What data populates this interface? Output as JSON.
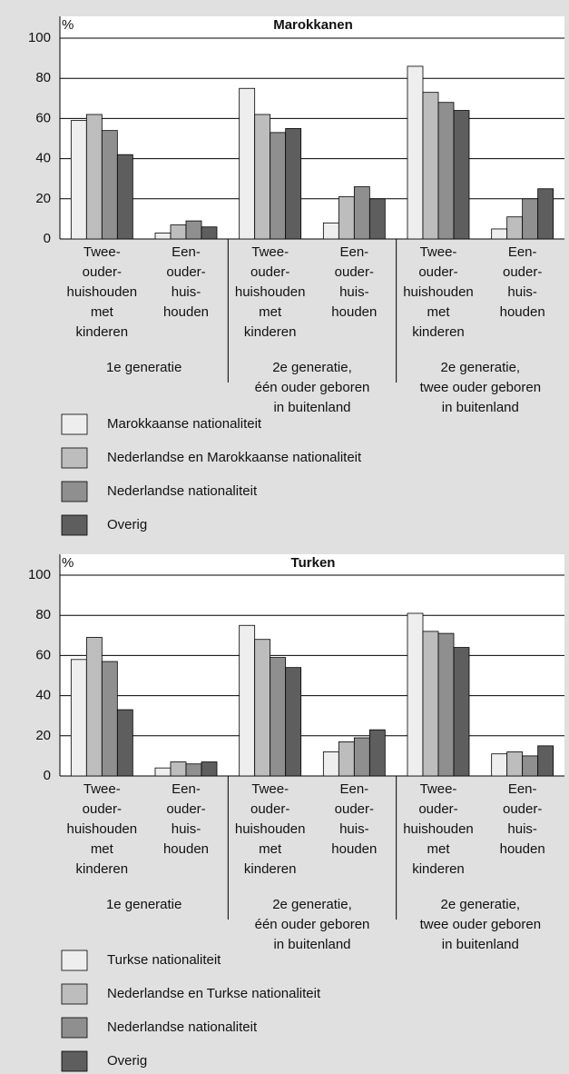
{
  "chart_data": [
    {
      "type": "bar",
      "title": "Marokkanen",
      "ylabel": "%",
      "categories": [
        [
          "Twee-",
          "ouder-",
          "huishouden",
          "met",
          "kinderen"
        ],
        [
          "Een-",
          "ouder-",
          "huis-",
          "houden"
        ],
        [
          "Twee-",
          "ouder-",
          "huishouden",
          "met",
          "kinderen"
        ],
        [
          "Een-",
          "ouder-",
          "huis-",
          "houden"
        ],
        [
          "Twee-",
          "ouder-",
          "huishouden",
          "met",
          "kinderen"
        ],
        [
          "Een-",
          "ouder-",
          "huis-",
          "houden"
        ]
      ],
      "groups": [
        [
          "1e generatie"
        ],
        [
          "2e generatie,",
          "één ouder geboren",
          "in buitenland"
        ],
        [
          "2e generatie,",
          "twee ouder geboren",
          "in buitenland"
        ]
      ],
      "series": [
        {
          "name": "Marokkaanse nationaliteit",
          "color": "#eeeeee",
          "values": [
            59,
            3,
            75,
            8,
            86,
            5
          ]
        },
        {
          "name": "Nederlandse en Marokkaanse nationaliteit",
          "color": "#bdbdbd",
          "values": [
            62,
            7,
            62,
            21,
            73,
            11
          ]
        },
        {
          "name": "Nederlandse nationaliteit",
          "color": "#8f8f8f",
          "values": [
            54,
            9,
            53,
            26,
            68,
            20
          ]
        },
        {
          "name": "Overig",
          "color": "#5e5e5e",
          "values": [
            42,
            6,
            55,
            20,
            64,
            25
          ]
        }
      ],
      "ylim": [
        0,
        100
      ],
      "yticks": [
        0,
        20,
        40,
        60,
        80,
        100
      ],
      "grid": true
    },
    {
      "type": "bar",
      "title": "Turken",
      "ylabel": "%",
      "categories": [
        [
          "Twee-",
          "ouder-",
          "huishouden",
          "met",
          "kinderen"
        ],
        [
          "Een-",
          "ouder-",
          "huis-",
          "houden"
        ],
        [
          "Twee-",
          "ouder-",
          "huishouden",
          "met",
          "kinderen"
        ],
        [
          "Een-",
          "ouder-",
          "huis-",
          "houden"
        ],
        [
          "Twee-",
          "ouder-",
          "huishouden",
          "met",
          "kinderen"
        ],
        [
          "Een-",
          "ouder-",
          "huis-",
          "houden"
        ]
      ],
      "groups": [
        [
          "1e generatie"
        ],
        [
          "2e generatie,",
          "één ouder geboren",
          "in buitenland"
        ],
        [
          "2e generatie,",
          "twee ouder geboren",
          "in buitenland"
        ]
      ],
      "series": [
        {
          "name": "Turkse nationaliteit",
          "color": "#eeeeee",
          "values": [
            58,
            4,
            75,
            12,
            81,
            11
          ]
        },
        {
          "name": "Nederlandse en Turkse nationaliteit",
          "color": "#bdbdbd",
          "values": [
            69,
            7,
            68,
            17,
            72,
            12
          ]
        },
        {
          "name": "Nederlandse nationaliteit",
          "color": "#8f8f8f",
          "values": [
            57,
            6,
            59,
            19,
            71,
            10
          ]
        },
        {
          "name": "Overig",
          "color": "#5e5e5e",
          "values": [
            33,
            7,
            54,
            23,
            64,
            15
          ]
        }
      ],
      "ylim": [
        0,
        100
      ],
      "yticks": [
        0,
        20,
        40,
        60,
        80,
        100
      ],
      "grid": true
    }
  ]
}
